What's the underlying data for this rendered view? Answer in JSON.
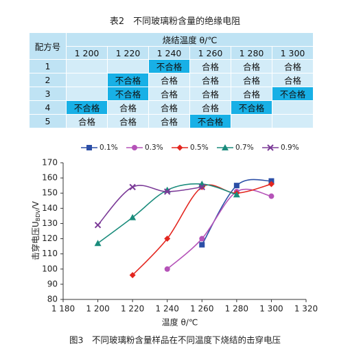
{
  "table": {
    "title": "表2　不同玻璃粉含量的绝缘电阻",
    "row_header": "配方号",
    "group_header": "烧结温度 θ/℃",
    "columns": [
      "1 200",
      "1 220",
      "1 240",
      "1 260",
      "1 280",
      "1 300"
    ],
    "rows": [
      {
        "id": "1",
        "cells": [
          null,
          null,
          "不合格",
          "合格",
          "合格",
          "合格"
        ]
      },
      {
        "id": "2",
        "cells": [
          null,
          "不合格",
          "合格",
          "合格",
          "合格",
          "合格"
        ]
      },
      {
        "id": "3",
        "cells": [
          null,
          "不合格",
          "合格",
          "合格",
          "合格",
          "不合格"
        ]
      },
      {
        "id": "4",
        "cells": [
          "不合格",
          "合格",
          "合格",
          "合格",
          "不合格",
          null
        ]
      },
      {
        "id": "5",
        "cells": [
          "合格",
          "合格",
          "合格",
          "不合格",
          null,
          null
        ]
      }
    ],
    "fail_text": "不合格"
  },
  "chart_data": {
    "type": "line",
    "caption": "图3　不同玻璃粉含量样品在不同温度下烧结的击穿电压",
    "x_label": "温度 θ/℃",
    "y_label": "击穿电压U",
    "y_label_sub": "BDV",
    "y_label_unit": "/V",
    "xlim": [
      1180,
      1320
    ],
    "xticks": [
      {
        "value": 1180,
        "label": "1 180"
      },
      {
        "value": 1200,
        "label": "1 200"
      },
      {
        "value": 1220,
        "label": "1 220"
      },
      {
        "value": 1240,
        "label": "1 240"
      },
      {
        "value": 1260,
        "label": "1 260"
      },
      {
        "value": 1280,
        "label": "1 280"
      },
      {
        "value": 1300,
        "label": "1 300"
      },
      {
        "value": 1320,
        "label": "1 320"
      }
    ],
    "ylim": [
      80,
      170
    ],
    "yticks": [
      80,
      90,
      100,
      110,
      120,
      130,
      140,
      150,
      160,
      170
    ],
    "series": [
      {
        "name": "0.1%",
        "color": "#2b4ea6",
        "marker": "square",
        "x": [
          1260,
          1280,
          1300
        ],
        "values": [
          116,
          155,
          158
        ]
      },
      {
        "name": "0.3%",
        "color": "#b553b8",
        "marker": "circle",
        "x": [
          1240,
          1260,
          1280,
          1300
        ],
        "values": [
          100,
          120,
          151,
          148
        ]
      },
      {
        "name": "0.5%",
        "color": "#e3261f",
        "marker": "diamond",
        "x": [
          1220,
          1240,
          1260,
          1280,
          1300
        ],
        "values": [
          96,
          120,
          154,
          150,
          156
        ]
      },
      {
        "name": "0.7%",
        "color": "#1a8c7c",
        "marker": "triangle",
        "x": [
          1200,
          1220,
          1240,
          1260,
          1280
        ],
        "values": [
          117,
          134,
          152,
          156,
          149
        ]
      },
      {
        "name": "0.9%",
        "color": "#7b3a97",
        "marker": "x",
        "x": [
          1200,
          1220,
          1240,
          1260
        ],
        "values": [
          129,
          154,
          151,
          154
        ]
      }
    ]
  }
}
